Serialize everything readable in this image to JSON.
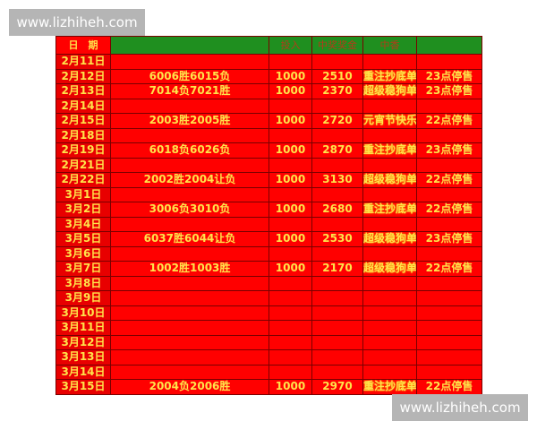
{
  "watermark": "www.lizhiheh.com",
  "header": [
    "日　期",
    "",
    "投入",
    "中奖奖金",
    "中香",
    ""
  ],
  "rows": [
    {
      "date": "2月11日",
      "match": "",
      "stake": "",
      "prize": "",
      "tag": "",
      "note": ""
    },
    {
      "date": "2月12日",
      "match": "6006胜6015负",
      "stake": "1000",
      "prize": "2510",
      "tag": "重注抄底单",
      "note": "23点停售"
    },
    {
      "date": "2月13日",
      "match": "7014负7021胜",
      "stake": "1000",
      "prize": "2370",
      "tag": "超级稳狗单",
      "note": "23点停售"
    },
    {
      "date": "2月14日",
      "match": "",
      "stake": "",
      "prize": "",
      "tag": "",
      "note": ""
    },
    {
      "date": "2月15日",
      "match": "2003胜2005胜",
      "stake": "1000",
      "prize": "2720",
      "tag": "元宵节快乐",
      "note": "22点停售"
    },
    {
      "date": "2月18日",
      "match": "",
      "stake": "",
      "prize": "",
      "tag": "",
      "note": ""
    },
    {
      "date": "2月19日",
      "match": "6018负6026负",
      "stake": "1000",
      "prize": "2870",
      "tag": "重注抄底单",
      "note": "23点停售"
    },
    {
      "date": "2月21日",
      "match": "",
      "stake": "",
      "prize": "",
      "tag": "",
      "note": ""
    },
    {
      "date": "2月22日",
      "match": "2002胜2004让负",
      "stake": "1000",
      "prize": "3130",
      "tag": "超级稳狗单",
      "note": "22点停售"
    },
    {
      "date": "3月1日",
      "match": "",
      "stake": "",
      "prize": "",
      "tag": "",
      "note": ""
    },
    {
      "date": "3月2日",
      "match": "3006负3010负",
      "stake": "1000",
      "prize": "2680",
      "tag": "重注抄底单",
      "note": "22点停售"
    },
    {
      "date": "3月4日",
      "match": "",
      "stake": "",
      "prize": "",
      "tag": "",
      "note": ""
    },
    {
      "date": "3月5日",
      "match": "6037胜6044让负",
      "stake": "1000",
      "prize": "2530",
      "tag": "超级稳狗单",
      "note": "23点停售"
    },
    {
      "date": "3月6日",
      "match": "",
      "stake": "",
      "prize": "",
      "tag": "",
      "note": ""
    },
    {
      "date": "3月7日",
      "match": "1002胜1003胜",
      "stake": "1000",
      "prize": "2170",
      "tag": "超级稳狗单",
      "note": "22点停售"
    },
    {
      "date": "3月8日",
      "match": "",
      "stake": "",
      "prize": "",
      "tag": "",
      "note": ""
    },
    {
      "date": "3月9日",
      "match": "",
      "stake": "",
      "prize": "",
      "tag": "",
      "note": ""
    },
    {
      "date": "3月10日",
      "match": "",
      "stake": "",
      "prize": "",
      "tag": "",
      "note": ""
    },
    {
      "date": "3月11日",
      "match": "",
      "stake": "",
      "prize": "",
      "tag": "",
      "note": ""
    },
    {
      "date": "3月12日",
      "match": "",
      "stake": "",
      "prize": "",
      "tag": "",
      "note": ""
    },
    {
      "date": "3月13日",
      "match": "",
      "stake": "",
      "prize": "",
      "tag": "",
      "note": ""
    },
    {
      "date": "3月14日",
      "match": "",
      "stake": "",
      "prize": "",
      "tag": "",
      "note": ""
    },
    {
      "date": "3月15日",
      "match": "2004负2006胜",
      "stake": "1000",
      "prize": "2970",
      "tag": "重注抄底单",
      "note": "22点停售"
    }
  ]
}
